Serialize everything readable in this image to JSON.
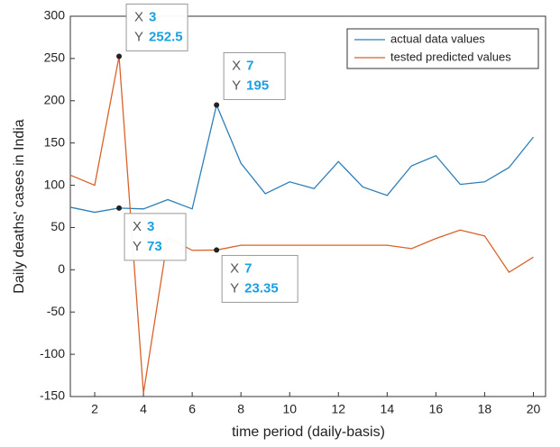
{
  "chart_data": {
    "type": "line",
    "xlabel": "time period (daily-basis)",
    "ylabel": "Daily deaths' cases in India",
    "x": [
      1,
      2,
      3,
      4,
      5,
      6,
      7,
      8,
      9,
      10,
      11,
      12,
      13,
      14,
      15,
      16,
      17,
      18,
      19,
      20
    ],
    "series": [
      {
        "name": "actual data values",
        "color": "#2e7fb8",
        "values": [
          74,
          68,
          73,
          72,
          83,
          72,
          195,
          126,
          90,
          104,
          96,
          128,
          98,
          88,
          123,
          135,
          101,
          104,
          121,
          157
        ]
      },
      {
        "name": "tested predicted values",
        "color": "#d9622b",
        "values": [
          112,
          100,
          252.5,
          -146,
          38,
          23,
          23.35,
          29,
          29,
          29,
          29,
          29,
          29,
          29,
          25,
          37,
          47,
          40,
          -3,
          15
        ]
      }
    ],
    "xlim": [
      1,
      20.5
    ],
    "ylim": [
      -150,
      300
    ],
    "xticks": [
      2,
      4,
      6,
      8,
      10,
      12,
      14,
      16,
      18,
      20
    ],
    "yticks": [
      -150,
      -100,
      -50,
      0,
      50,
      100,
      150,
      200,
      250,
      300
    ],
    "legend": "top-right",
    "datatips": [
      {
        "x_label": "X",
        "x": 3,
        "y_label": "Y",
        "y": 252.5
      },
      {
        "x_label": "X",
        "x": 7,
        "y_label": "Y",
        "y": 195
      },
      {
        "x_label": "X",
        "x": 3,
        "y_label": "Y",
        "y": 73
      },
      {
        "x_label": "X",
        "x": 7,
        "y_label": "Y",
        "y": 23.35
      }
    ]
  }
}
